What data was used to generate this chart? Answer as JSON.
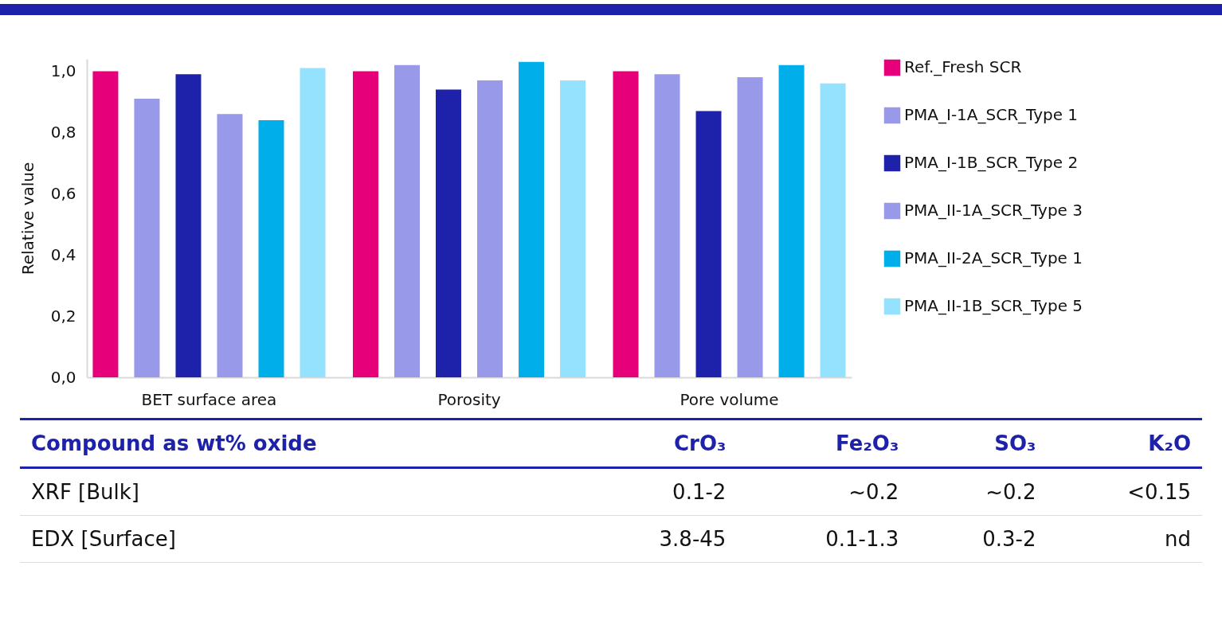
{
  "chart_data": [
    {
      "type": "bar",
      "ylabel": "Relative value",
      "categories": [
        "BET surface area",
        "Porosity",
        "Pore volume"
      ],
      "series": [
        {
          "name": "Ref._Fresh SCR",
          "color": "#e6007a",
          "values": [
            1.0,
            1.0,
            1.0
          ]
        },
        {
          "name": "PMA_I-1A_SCR_Type 1",
          "color": "#9999ea",
          "values": [
            0.91,
            1.02,
            0.99
          ]
        },
        {
          "name": "PMA_I-1B_SCR_Type 2",
          "color": "#1e22aa",
          "values": [
            0.99,
            0.94,
            0.87
          ]
        },
        {
          "name": "PMA_II-1A_SCR_Type 3",
          "color": "#9999ea",
          "values": [
            0.86,
            0.97,
            0.98
          ]
        },
        {
          "name": "PMA_II-2A_SCR_Type 1",
          "color": "#00aeea",
          "values": [
            0.84,
            1.03,
            1.02
          ]
        },
        {
          "name": "PMA_II-1B_SCR_Type 5",
          "color": "#94e2fe",
          "values": [
            1.01,
            0.97,
            0.96
          ]
        }
      ],
      "ylim": [
        0,
        1.04
      ],
      "yticks": [
        {
          "value": 0,
          "label": "0,0"
        },
        {
          "value": 0.2,
          "label": "0,2"
        },
        {
          "value": 0.4,
          "label": "0,4"
        },
        {
          "value": 0.6,
          "label": "0,6"
        },
        {
          "value": 0.8,
          "label": "0,8"
        },
        {
          "value": 1,
          "label": "1,0"
        }
      ],
      "grid": false,
      "legend": "right"
    },
    {
      "type": "other",
      "annotations": [
        "Compound as wt% oxide",
        "CrO₃",
        "Fe₂O₃",
        "SO₃",
        "K₂O",
        "XRF [Bulk]",
        "0.1-2",
        "~0.2",
        "~0.2",
        "<0.15",
        "EDX [Surface]",
        "3.8-45",
        "0.1-1.3",
        "0.3-2",
        "nd"
      ]
    }
  ]
}
